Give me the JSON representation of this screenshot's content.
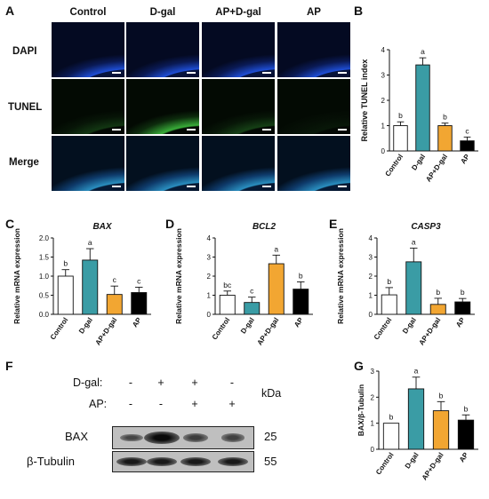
{
  "panel_letters": {
    "A": "A",
    "B": "B",
    "C": "C",
    "D": "D",
    "E": "E",
    "F": "F",
    "G": "G"
  },
  "panelA": {
    "columns": [
      "Control",
      "D-gal",
      "AP+D-gal",
      "AP"
    ],
    "rows": [
      "DAPI",
      "TUNEL",
      "Merge"
    ],
    "colors": {
      "dapi": "#1f4fd8",
      "tunel": "#3fbf3f",
      "merge": "#2a8fc0"
    }
  },
  "panelF": {
    "treatment_rows": [
      {
        "label": "D-gal:",
        "signs": [
          "-",
          "+",
          "+",
          "-"
        ]
      },
      {
        "label": "AP:",
        "signs": [
          "-",
          "-",
          "+",
          "+"
        ]
      }
    ],
    "kda_label": "kDa",
    "bands": [
      {
        "label": "BAX",
        "kda": "25",
        "intensities": [
          0.35,
          1.0,
          0.45,
          0.4
        ]
      },
      {
        "label": "β-Tubulin",
        "kda": "55",
        "intensities": [
          0.85,
          0.85,
          0.85,
          0.85
        ]
      }
    ]
  },
  "chart_data": [
    {
      "panel": "B",
      "type": "bar",
      "title": "",
      "ylabel": "Relative TUNEL index",
      "categories": [
        "Control",
        "D-gal",
        "AP+D-gal",
        "AP"
      ],
      "values": [
        1.0,
        3.4,
        1.0,
        0.4
      ],
      "errors": [
        0.15,
        0.28,
        0.1,
        0.15
      ],
      "letters": [
        "b",
        "a",
        "b",
        "c"
      ],
      "ylim": [
        0,
        4
      ],
      "yticks": [
        "0",
        "1",
        "2",
        "3",
        "4"
      ],
      "colors": [
        "#ffffff",
        "#3a9ca5",
        "#f2a632",
        "#000000"
      ]
    },
    {
      "panel": "C",
      "type": "bar",
      "title": "BAX",
      "ylabel": "Relative mRNA expression",
      "categories": [
        "Control",
        "D-gal",
        "AP+D-gal",
        "AP"
      ],
      "values": [
        1.0,
        1.42,
        0.52,
        0.57
      ],
      "errors": [
        0.17,
        0.3,
        0.22,
        0.14
      ],
      "letters": [
        "b",
        "a",
        "c",
        "c"
      ],
      "ylim": [
        0,
        2
      ],
      "yticks": [
        "0.0",
        "0.5",
        "1.0",
        "1.5",
        "2.0"
      ],
      "colors": [
        "#ffffff",
        "#3a9ca5",
        "#f2a632",
        "#000000"
      ]
    },
    {
      "panel": "D",
      "type": "bar",
      "title": "BCL2",
      "ylabel": "Relative mRNA expression",
      "categories": [
        "Control",
        "D-gal",
        "AP+D-gal",
        "AP"
      ],
      "values": [
        1.0,
        0.62,
        2.65,
        1.32
      ],
      "errors": [
        0.22,
        0.28,
        0.45,
        0.38
      ],
      "letters": [
        "bc",
        "c",
        "a",
        "b"
      ],
      "ylim": [
        0,
        4
      ],
      "yticks": [
        "0",
        "1",
        "2",
        "3",
        "4"
      ],
      "colors": [
        "#ffffff",
        "#3a9ca5",
        "#f2a632",
        "#000000"
      ]
    },
    {
      "panel": "E",
      "type": "bar",
      "title": "CASP3",
      "ylabel": "Relative mRNA expression",
      "categories": [
        "Control",
        "D-gal",
        "AP+D-gal",
        "AP"
      ],
      "values": [
        1.02,
        2.75,
        0.52,
        0.65
      ],
      "errors": [
        0.38,
        0.72,
        0.32,
        0.18
      ],
      "letters": [
        "b",
        "a",
        "b",
        "b"
      ],
      "ylim": [
        0,
        4
      ],
      "yticks": [
        "0",
        "1",
        "2",
        "3",
        "4"
      ],
      "colors": [
        "#ffffff",
        "#3a9ca5",
        "#f2a632",
        "#000000"
      ]
    },
    {
      "panel": "G",
      "type": "bar",
      "title": "",
      "ylabel": "BAX/β-Tubulin",
      "categories": [
        "Control",
        "D-gal",
        "AP+D-gal",
        "AP"
      ],
      "values": [
        1.0,
        2.32,
        1.48,
        1.12
      ],
      "errors": [
        0.0,
        0.45,
        0.35,
        0.2
      ],
      "letters": [
        "b",
        "a",
        "b",
        "b"
      ],
      "ylim": [
        0,
        3
      ],
      "yticks": [
        "0",
        "1",
        "2",
        "3"
      ],
      "colors": [
        "#ffffff",
        "#3a9ca5",
        "#f2a632",
        "#000000"
      ]
    }
  ]
}
